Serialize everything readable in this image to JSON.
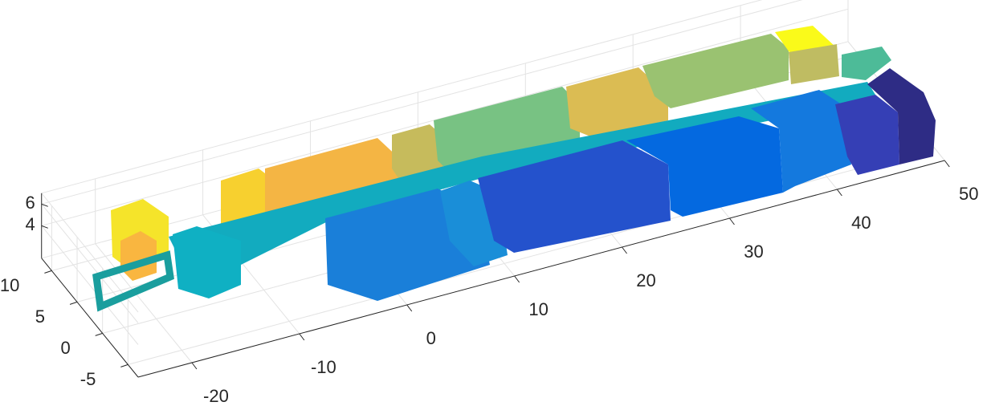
{
  "chart_data": {
    "type": "scatter3d",
    "xlim": [
      -25,
      50
    ],
    "xticks": [
      -20,
      -10,
      0,
      10,
      20,
      30,
      40,
      50
    ],
    "ylim": [
      -7,
      12
    ],
    "yticks": [
      -5,
      0,
      5,
      10
    ],
    "zlim": [
      1,
      7
    ],
    "zticks": [
      4,
      6
    ],
    "grid": true
  }
}
